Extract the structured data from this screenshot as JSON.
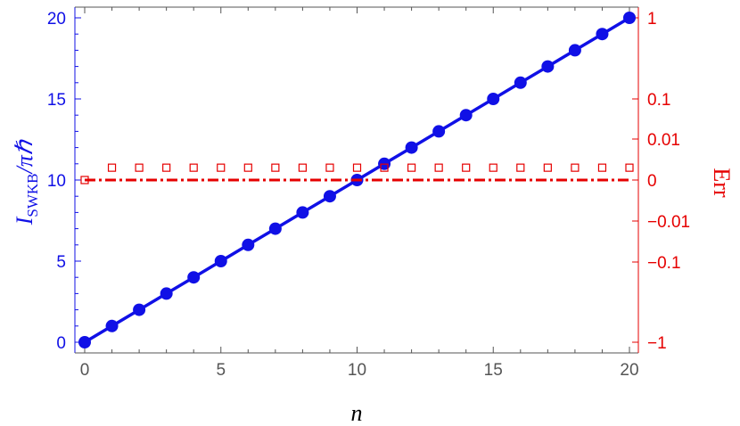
{
  "chart_data": {
    "type": "scatter",
    "x_axis": {
      "label": "n",
      "range": [
        0,
        20
      ],
      "ticks": [
        0,
        5,
        10,
        15,
        20
      ],
      "tick_labels": [
        "0",
        "5",
        "10",
        "15",
        "20"
      ]
    },
    "y_axis_left": {
      "label_main": "I",
      "label_sub": "SWKB",
      "label_suffix": "/πℏ",
      "range": [
        0,
        20
      ],
      "ticks": [
        0,
        5,
        10,
        15,
        20
      ],
      "tick_labels": [
        "0",
        "5",
        "10",
        "15",
        "20"
      ],
      "color": "#1010e6"
    },
    "y_axis_right": {
      "label": "Err",
      "scale": "symlog",
      "ticks": [
        -1,
        -0.1,
        -0.01,
        0,
        0.01,
        0.1,
        1
      ],
      "tick_labels": [
        "−1",
        "−0.1",
        "−0.01",
        "0",
        "0.01",
        "0.1",
        "1"
      ],
      "color": "#e60000"
    },
    "series": [
      {
        "axis": "left",
        "style": "markers+line",
        "color": "#1010e6",
        "x": [
          0,
          1,
          2,
          3,
          4,
          5,
          6,
          7,
          8,
          9,
          10,
          11,
          12,
          13,
          14,
          15,
          16,
          17,
          18,
          19,
          20
        ],
        "y": [
          0,
          1,
          2,
          3,
          4,
          5,
          6,
          7,
          8,
          9,
          10,
          11,
          12,
          13,
          14,
          15,
          16,
          17,
          18,
          19,
          20
        ]
      },
      {
        "axis": "right",
        "style": "open-squares+dashdot-line",
        "color": "#e60000",
        "x": [
          0,
          1,
          2,
          3,
          4,
          5,
          6,
          7,
          8,
          9,
          10,
          11,
          12,
          13,
          14,
          15,
          16,
          17,
          18,
          19,
          20
        ],
        "y": [
          0,
          -0.0005,
          -0.0005,
          -0.0005,
          -0.0005,
          -0.0005,
          -0.0005,
          -0.0005,
          -0.0005,
          -0.0005,
          -0.0005,
          -0.0005,
          -0.0005,
          -0.0005,
          -0.0005,
          -0.0005,
          -0.0005,
          -0.0005,
          -0.0005,
          -0.0005,
          -0.0005
        ]
      }
    ]
  }
}
